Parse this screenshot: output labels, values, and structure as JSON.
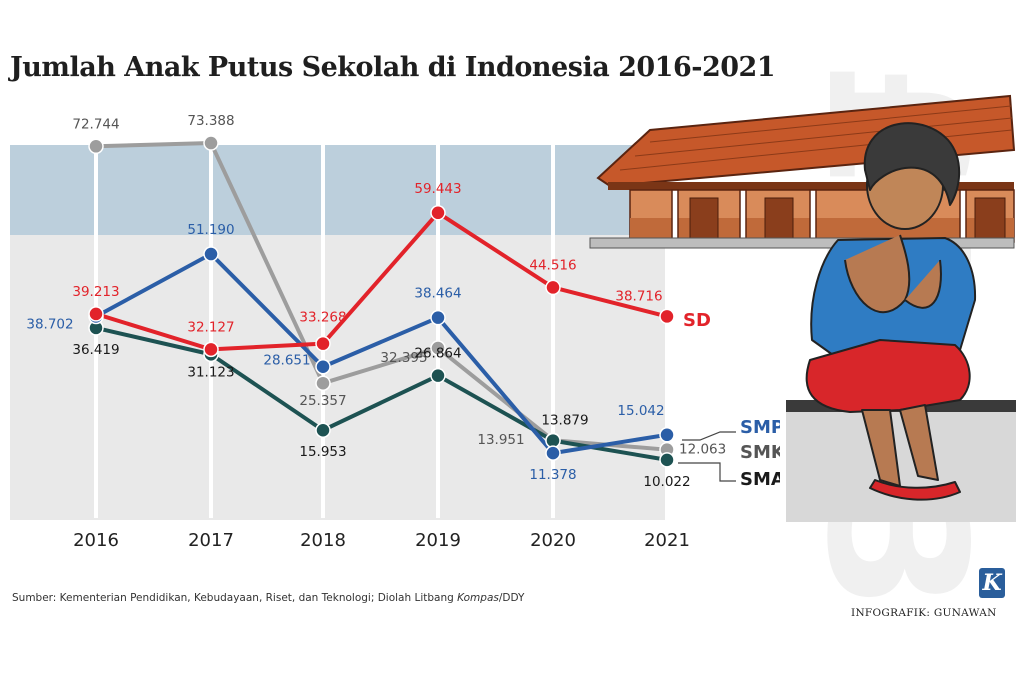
{
  "title": "Jumlah Anak Putus Sekolah di Indonesia 2016-2021",
  "source": {
    "prefix": "Sumber: Kementerian Pendidikan, Kebudayaan, Riset, dan Teknologi; Diolah Litbang ",
    "italic": "Kompas",
    "suffix": "/DDY"
  },
  "credit": "INFOGRAFIK: GUNAWAN",
  "logo_letter": "K",
  "colors": {
    "SD": "#e2232a",
    "SMP": "#2b5ea7",
    "SMK": "#9d9d9d",
    "SMA": "#1d5252",
    "band_top": "#bccfdc",
    "band_bottom": "#e9e9e9"
  },
  "chart_data": {
    "type": "line",
    "title": "Jumlah Anak Putus Sekolah di Indonesia 2016-2021",
    "x": [
      "2016",
      "2017",
      "2018",
      "2019",
      "2020",
      "2021"
    ],
    "series": [
      {
        "name": "SD",
        "values": [
          39213,
          32127,
          33268,
          59443,
          44516,
          38716
        ],
        "labels": [
          "39.213",
          "32.127",
          "33.268",
          "59.443",
          "44.516",
          "38.716"
        ]
      },
      {
        "name": "SMP",
        "values": [
          38702,
          51190,
          28651,
          38464,
          11378,
          15042
        ],
        "labels": [
          "38.702",
          "51.190",
          "28.651",
          "38.464",
          "11.378",
          "15.042"
        ]
      },
      {
        "name": "SMK",
        "values": [
          72744,
          73388,
          25357,
          32395,
          13951,
          12063
        ],
        "labels": [
          "72.744",
          "73.388",
          "25.357",
          "32.395",
          "13.951",
          "12.063"
        ]
      },
      {
        "name": "SMA",
        "values": [
          36419,
          31123,
          15953,
          26864,
          13879,
          10022
        ],
        "labels": [
          "36.419",
          "31.123",
          "15.953",
          "26.864",
          "13.879",
          "10.022"
        ]
      }
    ],
    "ylim": [
      0,
      80000
    ],
    "grid": true,
    "legend": "right"
  }
}
